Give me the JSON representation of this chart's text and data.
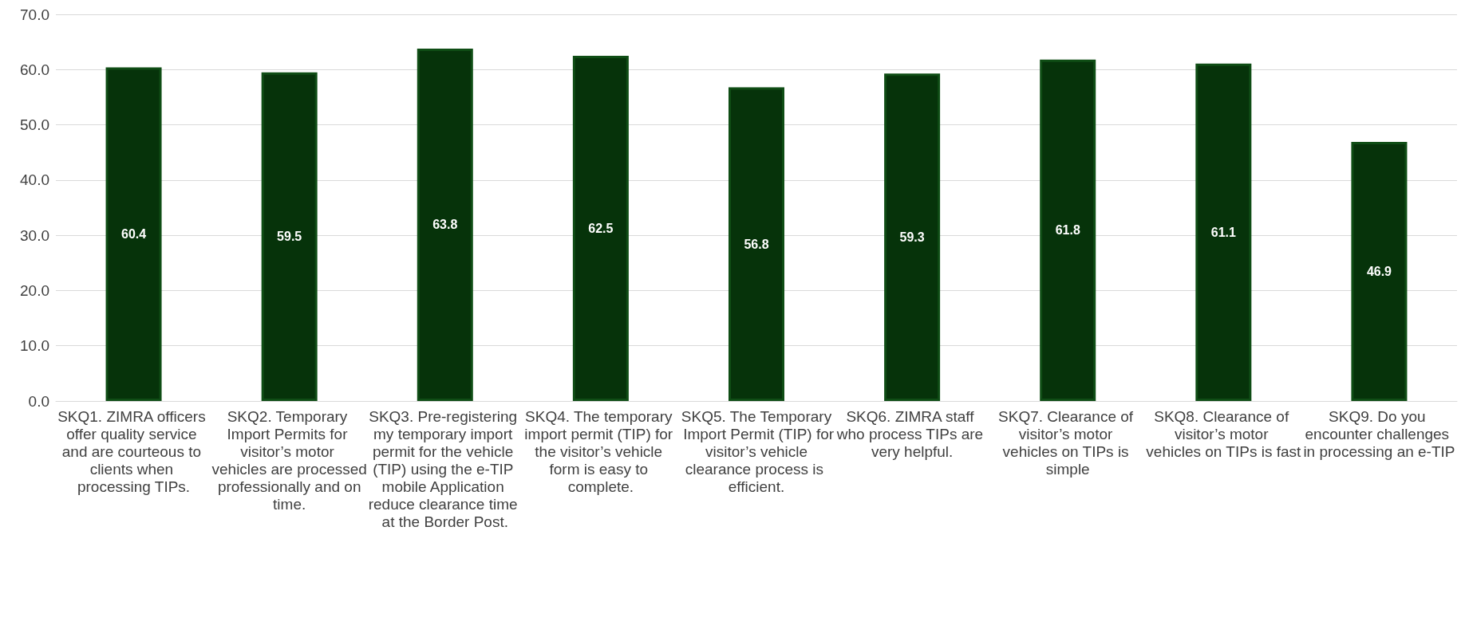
{
  "chart_data": {
    "type": "bar",
    "categories": [
      "SKQ1. ZIMRA officers offer quality service and are courteous to clients when processing TIPs.",
      "SKQ2. Temporary Import Permits for visitor’s motor vehicles are processed professionally and on time.",
      "SKQ3. Pre-registering my temporary import permit for the vehicle (TIP) using the e-TIP mobile Application reduce clearance time at the Border Post.",
      "SKQ4. The temporary import permit (TIP) for the visitor’s vehicle form is easy to complete.",
      "SKQ5. The Temporary Import Permit (TIP) for visitor’s vehicle clearance process is efficient.",
      "SKQ6. ZIMRA staff who process TIPs are very helpful.",
      "SKQ7. Clearance of visitor’s motor vehicles on TIPs is simple",
      "SKQ8. Clearance of visitor’s motor vehicles on TIPs is fast",
      "SKQ9. Do you encounter challenges in processing an e-TIP"
    ],
    "values": [
      60.4,
      59.5,
      63.8,
      62.5,
      56.8,
      59.3,
      61.8,
      61.1,
      46.9
    ],
    "color": "#06330a",
    "ylim": [
      0,
      70
    ],
    "yticks": [
      {
        "value": 0,
        "label": "0.0"
      },
      {
        "value": 10,
        "label": "10.0"
      },
      {
        "value": 20,
        "label": "20.0"
      },
      {
        "value": 30,
        "label": "30.0"
      },
      {
        "value": 40,
        "label": "40.0"
      },
      {
        "value": 50,
        "label": "50.0"
      },
      {
        "value": 60,
        "label": "60.0"
      },
      {
        "value": 70,
        "label": "70.0"
      }
    ],
    "grid": true,
    "data_labels": true
  }
}
